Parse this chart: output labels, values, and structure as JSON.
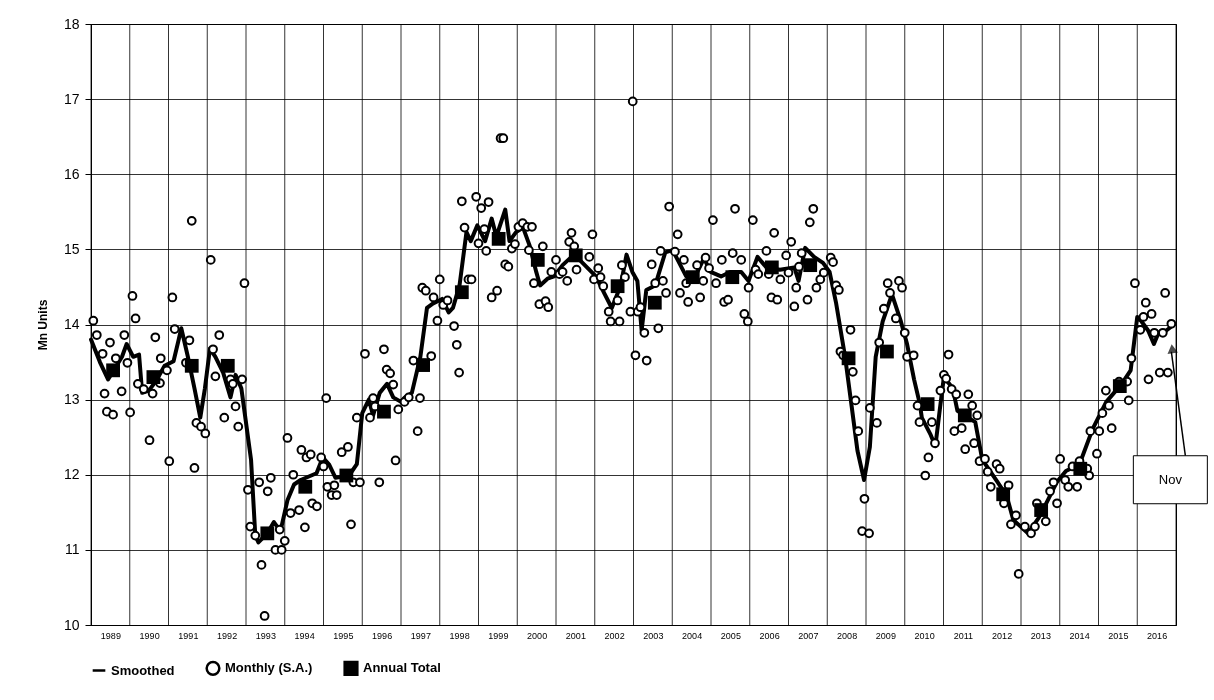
{
  "chart_data": {
    "type": "line",
    "ylabel": "Mn Units",
    "xlim": [
      1989,
      2017
    ],
    "ylim": [
      10,
      18
    ],
    "yticks": [
      10,
      11,
      12,
      13,
      14,
      15,
      16,
      17,
      18
    ],
    "xticks": [
      {
        "value": 1989,
        "label": null
      },
      {
        "value": 1989.5,
        "label": "1989"
      },
      {
        "value": 1990,
        "label": null
      },
      {
        "value": 1990.5,
        "label": "1990"
      },
      {
        "value": 1991,
        "label": null
      },
      {
        "value": 1991.5,
        "label": "1991"
      },
      {
        "value": 1992,
        "label": null
      },
      {
        "value": 1992.5,
        "label": "1992"
      },
      {
        "value": 1993,
        "label": null
      },
      {
        "value": 1993.5,
        "label": "1993"
      },
      {
        "value": 1994,
        "label": null
      },
      {
        "value": 1994.5,
        "label": "1994"
      },
      {
        "value": 1995,
        "label": null
      },
      {
        "value": 1995.5,
        "label": "1995"
      },
      {
        "value": 1996,
        "label": null
      },
      {
        "value": 1996.5,
        "label": "1996"
      },
      {
        "value": 1997,
        "label": null
      },
      {
        "value": 1997.5,
        "label": "1997"
      },
      {
        "value": 1998,
        "label": null
      },
      {
        "value": 1998.5,
        "label": "1998"
      },
      {
        "value": 1999,
        "label": null
      },
      {
        "value": 1999.5,
        "label": "1999"
      },
      {
        "value": 2000,
        "label": null
      },
      {
        "value": 2000.5,
        "label": "2000"
      },
      {
        "value": 2001,
        "label": null
      },
      {
        "value": 2001.5,
        "label": "2001"
      },
      {
        "value": 2002,
        "label": null
      },
      {
        "value": 2002.5,
        "label": "2002"
      },
      {
        "value": 2003,
        "label": null
      },
      {
        "value": 2003.5,
        "label": "2003"
      },
      {
        "value": 2004,
        "label": null
      },
      {
        "value": 2004.5,
        "label": "2004"
      },
      {
        "value": 2005,
        "label": null
      },
      {
        "value": 2005.5,
        "label": "2005"
      },
      {
        "value": 2006,
        "label": null
      },
      {
        "value": 2006.5,
        "label": "2006"
      },
      {
        "value": 2007,
        "label": null
      },
      {
        "value": 2007.5,
        "label": "2007"
      },
      {
        "value": 2008,
        "label": null
      },
      {
        "value": 2008.5,
        "label": "2008"
      },
      {
        "value": 2009,
        "label": null
      },
      {
        "value": 2009.5,
        "label": "2009"
      },
      {
        "value": 2010,
        "label": null
      },
      {
        "value": 2010.5,
        "label": "2010"
      },
      {
        "value": 2011,
        "label": null
      },
      {
        "value": 2011.5,
        "label": "2011"
      },
      {
        "value": 2012,
        "label": null
      },
      {
        "value": 2012.5,
        "label": "2012"
      },
      {
        "value": 2013,
        "label": null
      },
      {
        "value": 2013.5,
        "label": "2013"
      },
      {
        "value": 2014,
        "label": null
      },
      {
        "value": 2014.5,
        "label": "2014"
      },
      {
        "value": 2015,
        "label": null
      },
      {
        "value": 2015.5,
        "label": "2015"
      },
      {
        "value": 2016,
        "label": null
      },
      {
        "value": 2016.5,
        "label": "2016"
      },
      {
        "value": 2017,
        "label": null
      }
    ],
    "grid": true,
    "legend": "bottom",
    "annotations": [
      "Nov"
    ],
    "series": [
      {
        "name": "Smoothed",
        "type": "line",
        "color": "#000000",
        "x": [
          1989.0,
          1989.23,
          1989.44,
          1989.55,
          1989.8,
          1989.92,
          1990.09,
          1990.24,
          1990.32,
          1990.49,
          1990.67,
          1990.9,
          1991.13,
          1991.25,
          1991.33,
          1991.5,
          1991.67,
          1991.82,
          1991.94,
          1992.07,
          1992.21,
          1992.41,
          1992.6,
          1992.73,
          1992.88,
          1993.13,
          1993.24,
          1993.32,
          1993.55,
          1993.72,
          1993.89,
          1994.07,
          1994.24,
          1994.41,
          1994.82,
          1994.98,
          1995.14,
          1995.31,
          1995.66,
          1995.86,
          1996.0,
          1996.17,
          1996.28,
          1996.45,
          1996.64,
          1996.8,
          1997.0,
          1997.1,
          1997.28,
          1997.5,
          1997.67,
          1997.83,
          1998.06,
          1998.23,
          1998.34,
          1998.51,
          1998.69,
          1998.8,
          1998.97,
          1999.17,
          1999.34,
          1999.46,
          1999.69,
          1999.8,
          1999.97,
          2000.15,
          2000.32,
          2000.49,
          2000.59,
          2000.78,
          2000.95,
          2001.17,
          2001.4,
          2001.57,
          2001.8,
          2002.03,
          2002.26,
          2002.44,
          2002.67,
          2002.82,
          2002.97,
          2003.1,
          2003.21,
          2003.33,
          2003.56,
          2003.82,
          2004.01,
          2004.18,
          2004.36,
          2004.59,
          2004.82,
          2004.99,
          2005.26,
          2005.49,
          2005.78,
          2005.97,
          2006.2,
          2006.43,
          2006.78,
          2007.15,
          2007.26,
          2007.43,
          2007.66,
          2007.89,
          2008.06,
          2008.23,
          2008.46,
          2008.63,
          2008.78,
          2008.95,
          2009.1,
          2009.25,
          2009.43,
          2009.67,
          2009.9,
          2010.06,
          2010.24,
          2010.39,
          2010.44,
          2010.67,
          2010.79,
          2010.9,
          2011.01,
          2011.24,
          2011.36,
          2011.82,
          2012.0,
          2012.4,
          2012.63,
          2012.8,
          2013.18,
          2013.46,
          2013.69,
          2013.92,
          2014.16,
          2014.51,
          2014.85,
          2015.2,
          2015.6,
          2015.83,
          2016.0,
          2016.11,
          2016.28,
          2016.43,
          2016.55,
          2016.75,
          2016.9
        ],
        "values": [
          13.8,
          13.5,
          13.27,
          13.36,
          13.57,
          13.74,
          13.57,
          13.6,
          13.09,
          13.12,
          13.24,
          13.45,
          13.51,
          13.77,
          13.95,
          13.57,
          13.15,
          12.76,
          13.15,
          13.68,
          13.57,
          13.36,
          13.03,
          13.33,
          13.15,
          12.2,
          11.19,
          11.1,
          11.22,
          11.37,
          11.25,
          11.66,
          11.87,
          11.93,
          12.02,
          12.23,
          12.14,
          11.96,
          11.99,
          12.14,
          12.82,
          13.0,
          12.79,
          13.09,
          13.21,
          13.03,
          12.97,
          13.03,
          13.09,
          13.57,
          14.22,
          14.28,
          14.34,
          14.16,
          14.22,
          14.52,
          15.23,
          15.11,
          15.32,
          15.11,
          15.41,
          15.17,
          15.53,
          15.11,
          15.23,
          15.29,
          15.05,
          14.7,
          14.52,
          14.61,
          14.64,
          14.79,
          14.9,
          14.88,
          14.76,
          14.64,
          14.4,
          14.22,
          14.52,
          14.93,
          14.7,
          14.58,
          13.92,
          14.46,
          14.52,
          14.96,
          14.99,
          14.82,
          14.64,
          14.64,
          14.88,
          14.7,
          14.64,
          14.7,
          14.7,
          14.58,
          14.9,
          14.76,
          14.73,
          14.76,
          14.58,
          15.02,
          14.9,
          14.82,
          14.7,
          14.28,
          13.57,
          12.91,
          12.32,
          11.93,
          12.37,
          13.57,
          14.04,
          14.4,
          14.04,
          13.74,
          13.27,
          12.94,
          12.76,
          12.53,
          12.38,
          12.85,
          13.3,
          13.15,
          12.85,
          12.7,
          12.2,
          11.9,
          11.72,
          11.4,
          11.22,
          11.43,
          11.66,
          11.9,
          12.05,
          12.14,
          12.61,
          12.97,
          13.21,
          13.39,
          14.1,
          14.04,
          13.92,
          13.74,
          13.89,
          13.92,
          13.98
        ]
      },
      {
        "name": "Monthly (S.A.)",
        "type": "scatter",
        "marker": "circle",
        "color": "#000000",
        "x": [
          1989.06,
          1989.15,
          1989.3,
          1989.35,
          1989.41,
          1989.49,
          1989.57,
          1989.64,
          1989.79,
          1989.86,
          1989.94,
          1990.01,
          1990.07,
          1990.15,
          1990.21,
          1990.36,
          1990.51,
          1990.59,
          1990.66,
          1990.78,
          1990.8,
          1990.96,
          1991.02,
          1991.1,
          1991.16,
          1991.45,
          1991.54,
          1991.6,
          1991.67,
          1991.72,
          1991.84,
          1991.95,
          1992.09,
          1992.15,
          1992.21,
          1992.31,
          1992.44,
          1992.6,
          1992.66,
          1992.73,
          1992.8,
          1992.9,
          1992.96,
          1993.05,
          1993.11,
          1993.24,
          1993.34,
          1993.4,
          1993.48,
          1993.56,
          1993.64,
          1993.76,
          1993.87,
          1993.92,
          1994.0,
          1994.07,
          1994.15,
          1994.22,
          1994.37,
          1994.43,
          1994.52,
          1994.56,
          1994.67,
          1994.71,
          1994.83,
          1994.94,
          1995.0,
          1995.07,
          1995.1,
          1995.21,
          1995.28,
          1995.34,
          1995.47,
          1995.63,
          1995.71,
          1995.77,
          1995.86,
          1995.94,
          1996.07,
          1996.2,
          1996.28,
          1996.33,
          1996.44,
          1996.56,
          1996.63,
          1996.72,
          1996.8,
          1996.86,
          1996.93,
          1997.09,
          1997.2,
          1997.32,
          1997.43,
          1997.49,
          1997.55,
          1997.64,
          1997.78,
          1997.84,
          1997.94,
          1998.0,
          1998.09,
          1998.2,
          1998.37,
          1998.44,
          1998.5,
          1998.57,
          1998.64,
          1998.74,
          1998.82,
          1998.94,
          1999.0,
          1999.07,
          1999.15,
          1999.2,
          1999.26,
          1999.34,
          1999.48,
          1999.57,
          1999.64,
          1999.69,
          1999.77,
          1999.86,
          1999.94,
          2000.03,
          2000.14,
          2000.26,
          2000.3,
          2000.38,
          2000.43,
          2000.57,
          2000.66,
          2000.73,
          2000.8,
          2000.88,
          2001.0,
          2001.09,
          2001.17,
          2001.29,
          2001.34,
          2001.4,
          2001.47,
          2001.53,
          2001.86,
          2001.94,
          2001.98,
          2002.09,
          2002.15,
          2002.22,
          2002.36,
          2002.41,
          2002.59,
          2002.64,
          2002.7,
          2002.78,
          2002.92,
          2002.98,
          2003.05,
          2003.11,
          2003.18,
          2003.28,
          2003.34,
          2003.47,
          2003.56,
          2003.64,
          2003.7,
          2003.76,
          2003.84,
          2003.92,
          2004.07,
          2004.14,
          2004.2,
          2004.3,
          2004.36,
          2004.41,
          2004.64,
          2004.72,
          2004.8,
          2004.86,
          2004.95,
          2005.05,
          2005.13,
          2005.28,
          2005.34,
          2005.44,
          2005.56,
          2005.62,
          2005.78,
          2005.86,
          2005.95,
          2005.97,
          2006.08,
          2006.15,
          2006.22,
          2006.43,
          2006.49,
          2006.56,
          2006.63,
          2006.71,
          2006.79,
          2006.94,
          2007.0,
          2007.07,
          2007.15,
          2007.2,
          2007.27,
          2007.34,
          2007.49,
          2007.55,
          2007.64,
          2007.72,
          2007.82,
          2007.91,
          2008.09,
          2008.15,
          2008.23,
          2008.3,
          2008.34,
          2008.41,
          2008.6,
          2008.66,
          2008.73,
          2008.8,
          2008.9,
          2008.96,
          2009.08,
          2009.1,
          2009.28,
          2009.34,
          2009.46,
          2009.56,
          2009.62,
          2009.77,
          2009.85,
          2009.93,
          2010.0,
          2010.06,
          2010.23,
          2010.33,
          2010.38,
          2010.53,
          2010.61,
          2010.7,
          2010.78,
          2010.92,
          2011.01,
          2011.07,
          2011.13,
          2011.21,
          2011.28,
          2011.33,
          2011.47,
          2011.56,
          2011.64,
          2011.74,
          2011.79,
          2011.87,
          2011.93,
          2012.07,
          2012.14,
          2012.22,
          2012.37,
          2012.45,
          2012.56,
          2012.68,
          2012.74,
          2012.87,
          2012.94,
          2013.1,
          2013.26,
          2013.36,
          2013.41,
          2013.64,
          2013.75,
          2013.84,
          2013.93,
          2014.01,
          2014.14,
          2014.22,
          2014.33,
          2014.45,
          2014.51,
          2014.71,
          2014.76,
          2014.79,
          2014.96,
          2015.02,
          2015.1,
          2015.19,
          2015.27,
          2015.34,
          2015.53,
          2015.74,
          2015.78,
          2015.85,
          2015.94,
          2016.08,
          2016.16,
          2016.22,
          2016.29,
          2016.37,
          2016.44,
          2016.58,
          2016.66,
          2016.72,
          2016.79,
          2016.88
        ],
        "values": [
          14.05,
          13.86,
          13.61,
          13.08,
          12.84,
          13.76,
          12.8,
          13.55,
          13.11,
          13.86,
          13.49,
          12.83,
          14.38,
          14.08,
          13.21,
          13.14,
          12.46,
          13.08,
          13.83,
          13.22,
          13.55,
          13.39,
          12.18,
          14.36,
          13.94,
          13.49,
          13.79,
          15.38,
          12.09,
          12.69,
          12.64,
          12.55,
          14.86,
          13.67,
          13.31,
          13.86,
          12.76,
          13.27,
          13.21,
          12.91,
          12.64,
          13.27,
          14.55,
          11.8,
          11.31,
          11.19,
          11.9,
          10.8,
          10.12,
          11.78,
          11.96,
          11.0,
          11.27,
          11.0,
          11.12,
          12.49,
          11.49,
          12.0,
          11.53,
          12.33,
          11.3,
          12.23,
          12.27,
          11.62,
          11.58,
          12.23,
          12.11,
          13.02,
          11.84,
          11.73,
          11.86,
          11.73,
          12.3,
          12.37,
          11.34,
          11.9,
          12.76,
          11.9,
          13.61,
          12.76,
          13.02,
          12.91,
          11.9,
          13.67,
          13.4,
          13.35,
          13.2,
          12.19,
          12.87,
          12.97,
          13.03,
          13.52,
          12.58,
          13.02,
          14.49,
          14.45,
          13.58,
          14.36,
          14.05,
          14.6,
          14.26,
          14.32,
          13.98,
          13.73,
          13.36,
          15.64,
          15.29,
          14.6,
          14.6,
          15.7,
          15.08,
          15.55,
          15.27,
          14.98,
          15.63,
          14.36,
          14.45,
          16.48,
          16.48,
          14.8,
          14.77,
          15.01,
          15.07,
          15.3,
          15.35,
          15.3,
          14.99,
          15.3,
          14.55,
          14.27,
          15.04,
          14.31,
          14.23,
          14.7,
          14.86,
          14.67,
          14.7,
          14.58,
          15.1,
          15.22,
          15.04,
          14.73,
          14.9,
          15.2,
          14.6,
          14.75,
          14.63,
          14.51,
          14.17,
          14.04,
          14.32,
          14.04,
          14.79,
          14.63,
          14.17,
          16.97,
          13.59,
          14.17,
          14.23,
          13.89,
          13.52,
          14.8,
          14.55,
          13.95,
          14.98,
          14.58,
          14.42,
          15.57,
          14.97,
          15.2,
          14.42,
          14.86,
          14.55,
          14.3,
          14.79,
          14.36,
          14.58,
          14.89,
          14.75,
          15.39,
          14.55,
          14.86,
          14.3,
          14.33,
          14.95,
          15.54,
          14.86,
          14.14,
          14.04,
          14.49,
          15.39,
          14.73,
          14.67,
          14.98,
          14.67,
          14.36,
          15.22,
          14.33,
          14.6,
          14.92,
          14.69,
          15.1,
          14.24,
          14.49,
          14.77,
          14.95,
          14.33,
          15.36,
          15.54,
          14.49,
          14.6,
          14.69,
          14.89,
          14.83,
          14.52,
          14.46,
          13.64,
          13.59,
          13.93,
          13.37,
          12.99,
          12.58,
          11.25,
          11.68,
          11.22,
          12.89,
          12.69,
          13.76,
          14.21,
          14.55,
          14.42,
          14.08,
          14.58,
          14.49,
          13.89,
          13.57,
          13.59,
          12.92,
          12.7,
          11.99,
          12.23,
          12.7,
          12.42,
          13.12,
          13.33,
          13.28,
          13.6,
          13.14,
          12.58,
          13.07,
          12.62,
          12.34,
          13.07,
          12.92,
          12.42,
          12.79,
          12.18,
          12.21,
          12.04,
          11.84,
          12.14,
          12.08,
          11.62,
          11.86,
          11.34,
          11.46,
          10.68,
          11.31,
          11.22,
          11.31,
          11.62,
          11.38,
          11.78,
          11.9,
          11.62,
          12.21,
          11.93,
          11.84,
          12.11,
          11.84,
          12.18,
          12.08,
          11.99,
          12.58,
          12.28,
          12.58,
          12.82,
          13.12,
          12.92,
          12.62,
          13.24,
          13.24,
          12.99,
          13.55,
          14.55,
          13.93,
          14.1,
          14.29,
          13.27,
          14.14,
          13.89,
          13.36,
          13.89,
          14.42,
          13.36,
          14.01
        ]
      },
      {
        "name": "Annual Total",
        "type": "scatter",
        "marker": "square",
        "color": "#000000",
        "x": [
          1989.57,
          1990.61,
          1991.6,
          1992.53,
          1993.55,
          1994.53,
          1995.59,
          1996.56,
          1997.57,
          1998.57,
          1999.52,
          2000.53,
          2001.51,
          2002.59,
          2003.55,
          2004.53,
          2005.55,
          2006.57,
          2007.56,
          2008.55,
          2009.54,
          2010.59,
          2011.55,
          2012.54,
          2013.52,
          2014.53,
          2015.55
        ],
        "values": [
          13.39,
          13.3,
          13.45,
          13.45,
          11.22,
          11.84,
          11.99,
          12.84,
          13.46,
          14.43,
          15.14,
          14.86,
          14.92,
          14.51,
          14.29,
          14.63,
          14.63,
          14.76,
          14.79,
          13.55,
          13.64,
          12.94,
          12.79,
          11.74,
          11.53,
          12.08,
          13.18
        ]
      }
    ]
  }
}
